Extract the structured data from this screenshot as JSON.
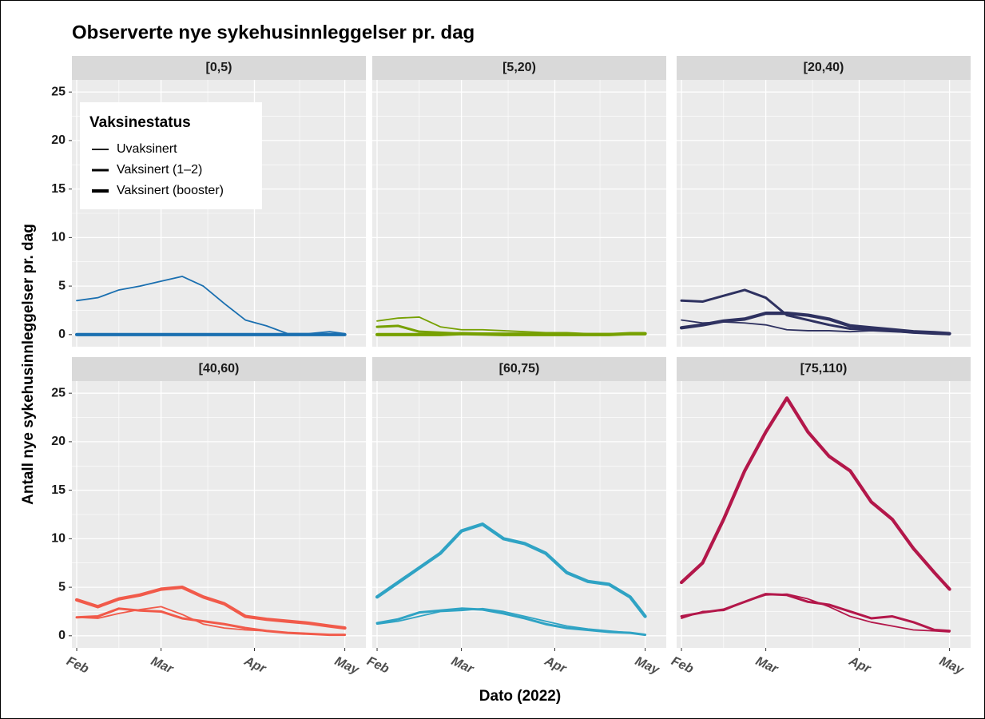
{
  "title": "Observerte nye sykehusinnleggelser pr. dag",
  "x_label": "Dato (2022)",
  "y_label": "Antall nye sykehusinnleggelser pr. dag",
  "legend_title": "Vaksinestatus",
  "chart_data": [
    {
      "type": "line",
      "facet": "[0,5)",
      "grid": true,
      "x": [
        0,
        7,
        14,
        21,
        28,
        35,
        42,
        49,
        56,
        63,
        70,
        77,
        84,
        89
      ],
      "xlim": [
        -1.6,
        96
      ],
      "ylim": [
        -1.25,
        26.25
      ],
      "xticks": [
        {
          "value": 0,
          "label": "Feb"
        },
        {
          "value": 28,
          "label": "Mar"
        },
        {
          "value": 59,
          "label": "Apr"
        },
        {
          "value": 89,
          "label": "May"
        }
      ],
      "yticks": [
        0,
        5,
        10,
        15,
        20,
        25
      ],
      "series": [
        {
          "name": "Uvaksinert",
          "color": "#1a6fb0",
          "width": 1.8,
          "values": [
            3.5,
            3.8,
            4.6,
            5.0,
            5.5,
            6.0,
            5.0,
            3.2,
            1.5,
            0.9,
            0.1,
            0.1,
            0.3,
            0.1
          ]
        },
        {
          "name": "Vaksinert (1–2)",
          "color": "#1a6fb0",
          "width": 3,
          "values": [
            0,
            0,
            0,
            0,
            0,
            0,
            0,
            0,
            0,
            0,
            0,
            0,
            0,
            0
          ]
        },
        {
          "name": "Vaksinert (booster)",
          "color": "#1a6fb0",
          "width": 4.2,
          "values": [
            0,
            0,
            0,
            0,
            0,
            0,
            0,
            0,
            0,
            0,
            0,
            0,
            0,
            0
          ]
        }
      ]
    },
    {
      "type": "line",
      "facet": "[5,20)",
      "grid": true,
      "x": [
        0,
        7,
        14,
        21,
        28,
        35,
        42,
        49,
        56,
        63,
        70,
        77,
        84,
        89
      ],
      "xlim": [
        -1.6,
        96
      ],
      "ylim": [
        -1.25,
        26.25
      ],
      "xticks": [
        {
          "value": 0,
          "label": "Feb"
        },
        {
          "value": 28,
          "label": "Mar"
        },
        {
          "value": 59,
          "label": "Apr"
        },
        {
          "value": 89,
          "label": "May"
        }
      ],
      "yticks": [
        0,
        5,
        10,
        15,
        20,
        25
      ],
      "series": [
        {
          "name": "Uvaksinert",
          "color": "#76a000",
          "width": 1.8,
          "values": [
            1.4,
            1.7,
            1.8,
            0.8,
            0.5,
            0.5,
            0.4,
            0.3,
            0.2,
            0.2,
            0.1,
            0.1,
            0.1,
            0.1
          ]
        },
        {
          "name": "Vaksinert (1–2)",
          "color": "#76a000",
          "width": 3,
          "values": [
            0.8,
            0.9,
            0.3,
            0.2,
            0.1,
            0.1,
            0.1,
            0.1,
            0.05,
            0.05,
            0.05,
            0.05,
            0.05,
            0.05
          ]
        },
        {
          "name": "Vaksinert (booster)",
          "color": "#76a000",
          "width": 4.2,
          "values": [
            0,
            0,
            0,
            0,
            0.1,
            0.05,
            0,
            0,
            0,
            0,
            0,
            0,
            0.1,
            0.1
          ]
        }
      ]
    },
    {
      "type": "line",
      "facet": "[20,40)",
      "grid": true,
      "x": [
        0,
        7,
        14,
        21,
        28,
        35,
        42,
        49,
        56,
        63,
        70,
        77,
        84,
        89
      ],
      "xlim": [
        -1.6,
        96
      ],
      "ylim": [
        -1.25,
        26.25
      ],
      "xticks": [
        {
          "value": 0,
          "label": "Feb"
        },
        {
          "value": 28,
          "label": "Mar"
        },
        {
          "value": 59,
          "label": "Apr"
        },
        {
          "value": 89,
          "label": "May"
        }
      ],
      "yticks": [
        0,
        5,
        10,
        15,
        20,
        25
      ],
      "series": [
        {
          "name": "Uvaksinert",
          "color": "#2e3160",
          "width": 1.8,
          "values": [
            1.5,
            1.2,
            1.3,
            1.2,
            1.0,
            0.5,
            0.4,
            0.4,
            0.3,
            0.4,
            0.3,
            0.2,
            0.2,
            0.1
          ]
        },
        {
          "name": "Vaksinert (1–2)",
          "color": "#2e3160",
          "width": 3,
          "values": [
            3.5,
            3.4,
            4.0,
            4.6,
            3.8,
            2.0,
            1.5,
            1.0,
            0.6,
            0.5,
            0.4,
            0.2,
            0.1,
            0.05
          ]
        },
        {
          "name": "Vaksinert (booster)",
          "color": "#2e3160",
          "width": 4.2,
          "values": [
            0.7,
            1.0,
            1.4,
            1.6,
            2.2,
            2.2,
            2.0,
            1.6,
            0.9,
            0.7,
            0.5,
            0.3,
            0.2,
            0.1
          ]
        }
      ]
    },
    {
      "type": "line",
      "facet": "[40,60)",
      "grid": true,
      "x": [
        0,
        7,
        14,
        21,
        28,
        35,
        42,
        49,
        56,
        63,
        70,
        77,
        84,
        89
      ],
      "xlim": [
        -1.6,
        96
      ],
      "ylim": [
        -1.25,
        26.25
      ],
      "xticks": [
        {
          "value": 0,
          "label": "Feb"
        },
        {
          "value": 28,
          "label": "Mar"
        },
        {
          "value": 59,
          "label": "Apr"
        },
        {
          "value": 89,
          "label": "May"
        }
      ],
      "yticks": [
        0,
        5,
        10,
        15,
        20,
        25
      ],
      "series": [
        {
          "name": "Uvaksinert",
          "color": "#f15a4a",
          "width": 1.8,
          "values": [
            1.9,
            1.8,
            2.3,
            2.7,
            3.0,
            2.2,
            1.2,
            0.8,
            0.6,
            0.5,
            0.3,
            0.2,
            0.1,
            0.1
          ]
        },
        {
          "name": "Vaksinert (1–2)",
          "color": "#f15a4a",
          "width": 3,
          "values": [
            1.9,
            2.0,
            2.8,
            2.6,
            2.5,
            1.8,
            1.5,
            1.2,
            0.8,
            0.5,
            0.3,
            0.2,
            0.1,
            0.1
          ]
        },
        {
          "name": "Vaksinert (booster)",
          "color": "#f15a4a",
          "width": 4.2,
          "values": [
            3.7,
            3.0,
            3.8,
            4.2,
            4.8,
            5.0,
            4.0,
            3.3,
            2.0,
            1.7,
            1.5,
            1.3,
            1.0,
            0.8
          ]
        }
      ]
    },
    {
      "type": "line",
      "facet": "[60,75)",
      "grid": true,
      "x": [
        0,
        7,
        14,
        21,
        28,
        35,
        42,
        49,
        56,
        63,
        70,
        77,
        84,
        89
      ],
      "xlim": [
        -1.6,
        96
      ],
      "ylim": [
        -1.25,
        26.25
      ],
      "xticks": [
        {
          "value": 0,
          "label": "Feb"
        },
        {
          "value": 28,
          "label": "Mar"
        },
        {
          "value": 59,
          "label": "Apr"
        },
        {
          "value": 89,
          "label": "May"
        }
      ],
      "yticks": [
        0,
        5,
        10,
        15,
        20,
        25
      ],
      "series": [
        {
          "name": "Uvaksinert",
          "color": "#2fa3c4",
          "width": 1.8,
          "values": [
            1.2,
            1.5,
            2.0,
            2.5,
            2.6,
            2.8,
            2.5,
            2.0,
            1.5,
            1.0,
            0.7,
            0.5,
            0.3,
            0.1
          ]
        },
        {
          "name": "Vaksinert (1–2)",
          "color": "#2fa3c4",
          "width": 3,
          "values": [
            1.3,
            1.7,
            2.4,
            2.6,
            2.8,
            2.7,
            2.3,
            1.8,
            1.2,
            0.8,
            0.6,
            0.4,
            0.3,
            0.1
          ]
        },
        {
          "name": "Vaksinert (booster)",
          "color": "#2fa3c4",
          "width": 4.2,
          "values": [
            4.0,
            5.5,
            7.0,
            8.5,
            10.8,
            11.5,
            10.0,
            9.5,
            8.5,
            6.5,
            5.6,
            5.3,
            4.0,
            2.0
          ]
        }
      ]
    },
    {
      "type": "line",
      "facet": "[75,110)",
      "grid": true,
      "x": [
        0,
        7,
        14,
        21,
        28,
        35,
        42,
        49,
        56,
        63,
        70,
        77,
        84,
        89
      ],
      "xlim": [
        -1.6,
        96
      ],
      "ylim": [
        -1.25,
        26.25
      ],
      "xticks": [
        {
          "value": 0,
          "label": "Feb"
        },
        {
          "value": 28,
          "label": "Mar"
        },
        {
          "value": 59,
          "label": "Apr"
        },
        {
          "value": 89,
          "label": "May"
        }
      ],
      "yticks": [
        0,
        5,
        10,
        15,
        20,
        25
      ],
      "series": [
        {
          "name": "Uvaksinert",
          "color": "#b3174a",
          "width": 1.8,
          "values": [
            1.8,
            2.5,
            2.6,
            3.5,
            4.2,
            4.3,
            3.8,
            3.0,
            2.0,
            1.4,
            1.0,
            0.6,
            0.5,
            0.4
          ]
        },
        {
          "name": "Vaksinert (1–2)",
          "color": "#b3174a",
          "width": 3,
          "values": [
            2.0,
            2.4,
            2.7,
            3.5,
            4.3,
            4.2,
            3.5,
            3.2,
            2.5,
            1.8,
            2.0,
            1.4,
            0.6,
            0.5
          ]
        },
        {
          "name": "Vaksinert (booster)",
          "color": "#b3174a",
          "width": 4.2,
          "values": [
            5.5,
            7.5,
            12.0,
            17.0,
            21.0,
            24.5,
            21.0,
            18.5,
            17.0,
            13.8,
            12.0,
            9.0,
            6.5,
            4.8
          ]
        }
      ]
    }
  ]
}
